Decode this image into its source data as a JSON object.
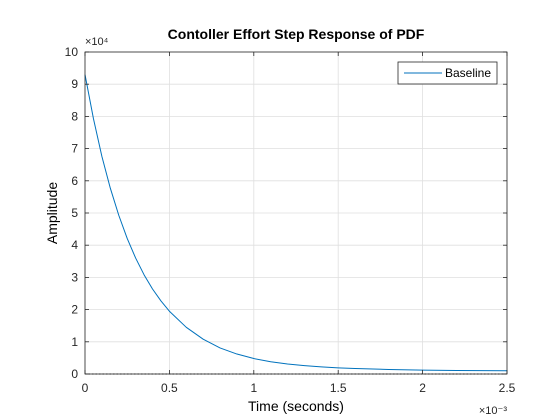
{
  "chart_data": {
    "type": "line",
    "title": "Contoller Effort Step Response of PDF",
    "xlabel": "Time (seconds)",
    "ylabel": "Amplitude",
    "xlim": [
      0,
      0.0025
    ],
    "ylim": [
      0,
      100000
    ],
    "x_ticks": [
      0,
      0.0005,
      0.001,
      0.0015,
      0.002,
      0.0025
    ],
    "x_tick_labels": [
      "0",
      "0.5",
      "1",
      "1.5",
      "2",
      "2.5"
    ],
    "x_exponent_label": "×10⁻³",
    "y_ticks": [
      0,
      10000,
      20000,
      30000,
      40000,
      50000,
      60000,
      70000,
      80000,
      90000,
      100000
    ],
    "y_tick_labels": [
      "0",
      "1",
      "2",
      "3",
      "4",
      "5",
      "6",
      "7",
      "8",
      "9",
      "10"
    ],
    "y_exponent_label": "×10⁴",
    "grid": true,
    "legend_position": "top-right",
    "series": [
      {
        "name": "Baseline",
        "color": "#0072BD",
        "x": [
          0,
          5e-05,
          0.0001,
          0.00015,
          0.0002,
          0.00025,
          0.0003,
          0.00035,
          0.0004,
          0.00045,
          0.0005,
          0.0006,
          0.0007,
          0.0008,
          0.0009,
          0.001,
          0.0011,
          0.0012,
          0.0013,
          0.0014,
          0.0015,
          0.0016,
          0.0018,
          0.002,
          0.0022,
          0.0025
        ],
        "y": [
          93000,
          79300,
          67600,
          57700,
          49300,
          42100,
          36000,
          30800,
          26400,
          22700,
          19500,
          14500,
          10800,
          8100,
          6200,
          4800,
          3800,
          3100,
          2600,
          2200,
          1900,
          1700,
          1400,
          1200,
          1100,
          1000
        ]
      }
    ],
    "baseline_series": {
      "color": "#000000",
      "dash": "dotted",
      "y": 0
    }
  }
}
